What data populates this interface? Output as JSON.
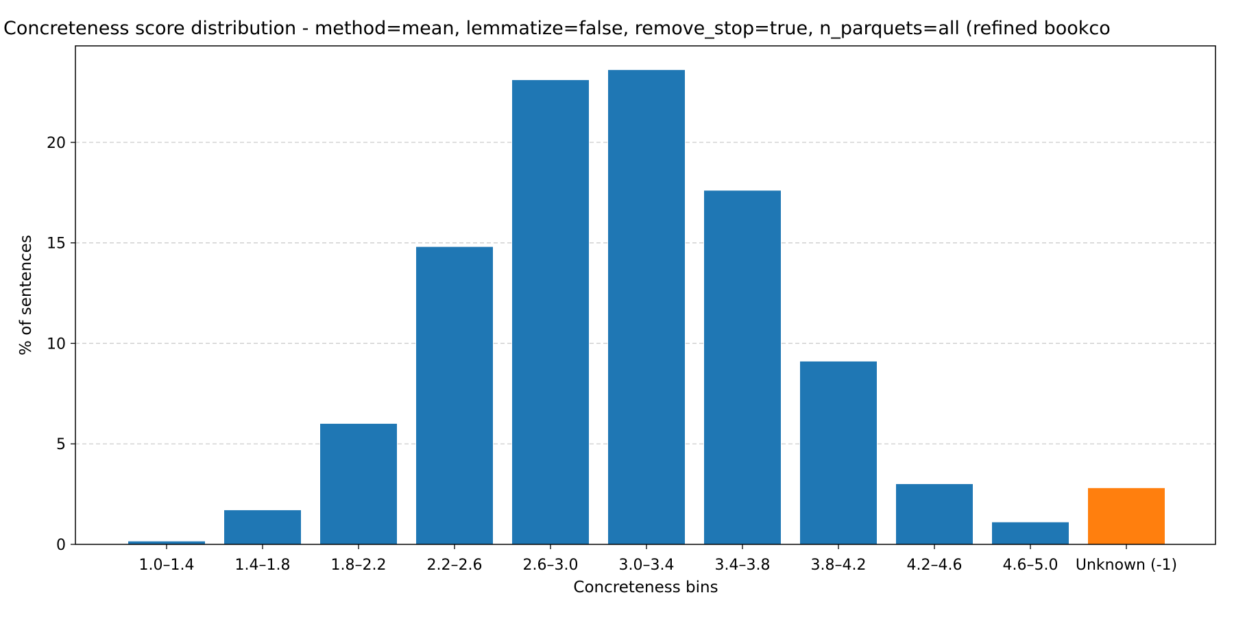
{
  "chart_data": {
    "type": "bar",
    "title": "Concreteness score distribution - method=mean, lemmatize=false, remove_stop=true, n_parquets=all (refined bookco",
    "xlabel": "Concreteness bins",
    "ylabel": "% of sentences",
    "categories": [
      "1.0–1.4",
      "1.4–1.8",
      "1.8–2.2",
      "2.2–2.6",
      "2.6–3.0",
      "3.0–3.4",
      "3.4–3.8",
      "3.8–4.2",
      "4.2–4.6",
      "4.6–5.0",
      "Unknown (-1)"
    ],
    "values": [
      0.15,
      1.7,
      6.0,
      14.8,
      23.1,
      23.6,
      17.6,
      9.1,
      3.0,
      1.1,
      2.8
    ],
    "bar_colors": [
      "#1f77b4",
      "#1f77b4",
      "#1f77b4",
      "#1f77b4",
      "#1f77b4",
      "#1f77b4",
      "#1f77b4",
      "#1f77b4",
      "#1f77b4",
      "#1f77b4",
      "#ff7f0e"
    ],
    "yticks": [
      0,
      5,
      10,
      15,
      20
    ],
    "ylim": [
      0,
      24.8
    ],
    "grid": "y-dashed",
    "legend": "none"
  }
}
